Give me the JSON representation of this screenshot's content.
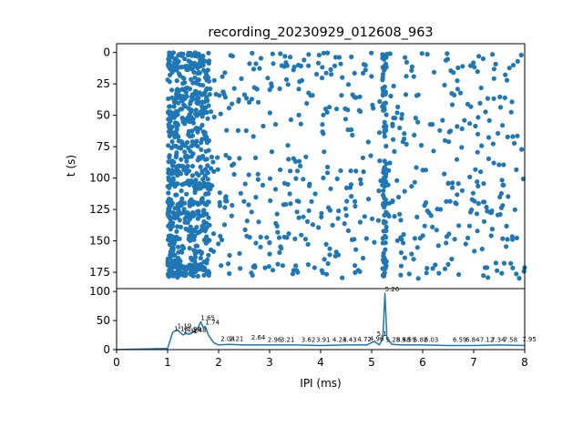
{
  "chart_data": [
    {
      "type": "scatter",
      "title": "recording_20230929_012608_963",
      "ylabel": "t (s)",
      "xlim": [
        0,
        8
      ],
      "ylim": [
        188,
        -7
      ],
      "y_ticks": [
        0,
        25,
        50,
        75,
        100,
        125,
        150,
        175
      ],
      "marker_color": "#1f77b4",
      "point_count_estimate": 1400,
      "density_bands_x": [
        1.05,
        1.3,
        1.65,
        5.25
      ],
      "series": [
        {
          "x_range": [
            1.0,
            8.0
          ],
          "y_range": [
            0,
            180
          ]
        }
      ]
    },
    {
      "type": "line",
      "xlabel": "IPI (ms)",
      "xlim": [
        0,
        8
      ],
      "ylim": [
        0,
        105
      ],
      "x_ticks": [
        0,
        1,
        2,
        3,
        4,
        5,
        6,
        7,
        8
      ],
      "y_ticks": [
        0,
        50,
        100
      ],
      "line_color": "#1f77b4",
      "series": [
        {
          "x": [
            0,
            1.0,
            1.1,
            1.19,
            1.3,
            1.36,
            1.42,
            1.5,
            1.58,
            1.65,
            1.7,
            1.74,
            1.8,
            1.9,
            2.0,
            2.2,
            2.5,
            3.0,
            3.5,
            4.0,
            4.5,
            4.9,
            5.05,
            5.15,
            5.22,
            5.26,
            5.3,
            5.4,
            5.6,
            6.0,
            6.5,
            7.0,
            7.5,
            8.0
          ],
          "y": [
            0,
            2,
            30,
            34,
            25,
            28,
            26,
            30,
            35,
            48,
            38,
            40,
            25,
            12,
            8,
            9,
            8,
            8,
            8,
            7,
            8,
            8,
            14,
            8,
            20,
            97,
            18,
            9,
            8,
            8,
            7,
            7,
            8,
            7
          ]
        }
      ],
      "annotations": [
        "1.13",
        "1.19",
        "1.31",
        "1.38",
        "1.48",
        "1.65",
        "1.74",
        "5.26",
        "5.1",
        "5.28",
        "5.48",
        "5.59",
        "5.82",
        "6.03",
        "6.59",
        "6.84",
        "7.12",
        "7.34",
        "7.58",
        "7.95",
        "2.04",
        "2.21",
        "2.64",
        "2.96",
        "3.21",
        "3.62",
        "3.91",
        "4.23",
        "4.43",
        "4.72",
        "4.96"
      ],
      "annotation_points": [
        {
          "text": "1.13",
          "x": 1.13,
          "y": 29
        },
        {
          "text": "1.19",
          "x": 1.19,
          "y": 34
        },
        {
          "text": "1.31",
          "x": 1.31,
          "y": 25
        },
        {
          "text": "1.38",
          "x": 1.38,
          "y": 28
        },
        {
          "text": "1.48",
          "x": 1.48,
          "y": 27
        },
        {
          "text": "1.65",
          "x": 1.65,
          "y": 48
        },
        {
          "text": "1.74",
          "x": 1.74,
          "y": 40
        },
        {
          "text": "2.04",
          "x": 2.04,
          "y": 12
        },
        {
          "text": "2.21",
          "x": 2.21,
          "y": 12
        },
        {
          "text": "2.64",
          "x": 2.64,
          "y": 14
        },
        {
          "text": "2.96",
          "x": 2.96,
          "y": 10
        },
        {
          "text": "3.21",
          "x": 3.21,
          "y": 10
        },
        {
          "text": "3.62",
          "x": 3.62,
          "y": 10
        },
        {
          "text": "3.91",
          "x": 3.91,
          "y": 10
        },
        {
          "text": "4.23",
          "x": 4.23,
          "y": 10
        },
        {
          "text": "4.43",
          "x": 4.43,
          "y": 10
        },
        {
          "text": "4.72",
          "x": 4.72,
          "y": 11
        },
        {
          "text": "4.96",
          "x": 4.96,
          "y": 12
        },
        {
          "text": "5.1",
          "x": 5.1,
          "y": 20
        },
        {
          "text": "5.26",
          "x": 5.26,
          "y": 97
        },
        {
          "text": "5.28",
          "x": 5.28,
          "y": 10
        },
        {
          "text": "5.48",
          "x": 5.48,
          "y": 10
        },
        {
          "text": "5.59",
          "x": 5.59,
          "y": 10
        },
        {
          "text": "5.82",
          "x": 5.82,
          "y": 10
        },
        {
          "text": "6.03",
          "x": 6.03,
          "y": 10
        },
        {
          "text": "6.59",
          "x": 6.59,
          "y": 10
        },
        {
          "text": "6.84",
          "x": 6.84,
          "y": 10
        },
        {
          "text": "7.12",
          "x": 7.12,
          "y": 10
        },
        {
          "text": "7.34",
          "x": 7.34,
          "y": 10
        },
        {
          "text": "7.58",
          "x": 7.58,
          "y": 10
        },
        {
          "text": "7.95",
          "x": 7.95,
          "y": 11
        }
      ]
    }
  ]
}
